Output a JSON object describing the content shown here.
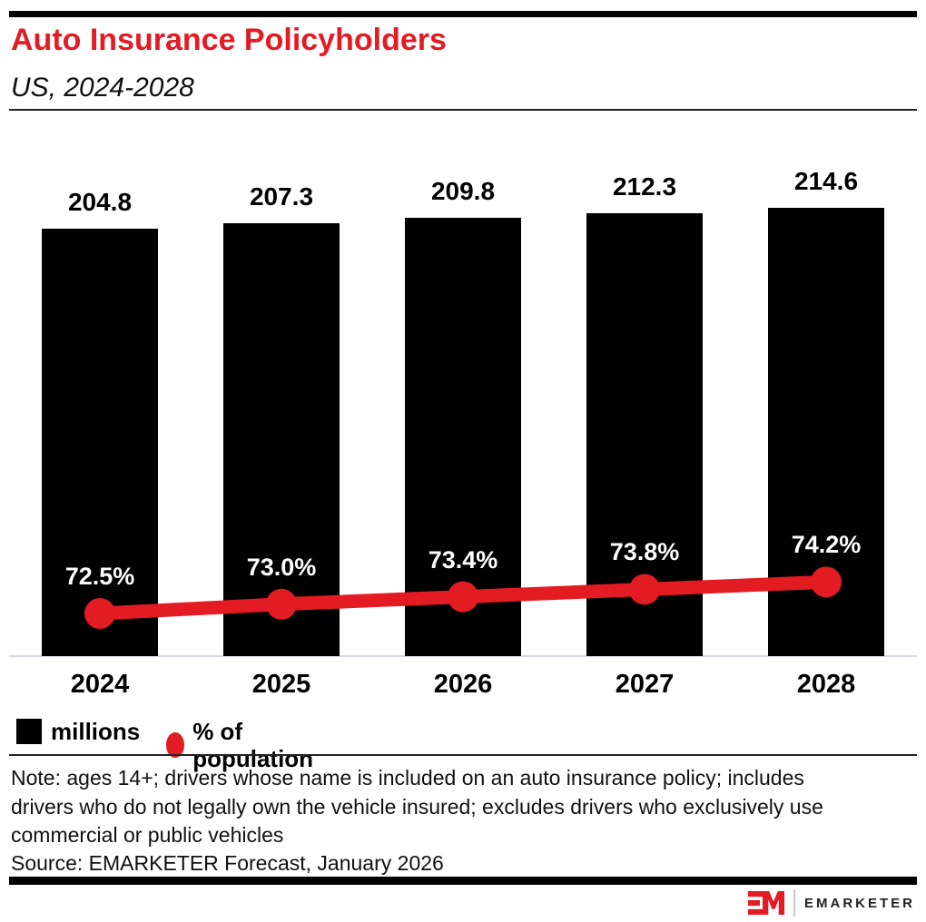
{
  "header": {
    "title": "Auto Insurance Policyholders",
    "subtitle": "US, 2024-2028"
  },
  "chart_data": {
    "type": "bar",
    "title": "Auto Insurance Policyholders",
    "subtitle": "US, 2024-2028",
    "categories": [
      "2024",
      "2025",
      "2026",
      "2027",
      "2028"
    ],
    "series": [
      {
        "name": "millions",
        "render": "bar",
        "color": "#000000",
        "values": [
          204.8,
          207.3,
          209.8,
          212.3,
          214.6
        ],
        "labels": [
          "204.8",
          "207.3",
          "209.8",
          "212.3",
          "214.6"
        ]
      },
      {
        "name": "% of population",
        "render": "line",
        "color": "#e31b23",
        "values": [
          72.5,
          73.0,
          73.4,
          73.8,
          74.2
        ],
        "labels": [
          "72.5%",
          "73.0%",
          "73.4%",
          "73.8%",
          "74.2%"
        ]
      }
    ],
    "xlabel": "",
    "ylabel": "",
    "bar_axis_starts_at_zero": true,
    "grid": false,
    "legend_position": "bottom-left"
  },
  "legend": {
    "items": [
      {
        "label": "millions",
        "swatch": "square",
        "color": "#000000"
      },
      {
        "label": "% of population",
        "swatch": "circle",
        "color": "#e31b23"
      }
    ]
  },
  "footnote": {
    "note_lines": [
      "Note: ages 14+; drivers whose name is included on an auto insurance policy; includes",
      "drivers who do not legally own the vehicle insured; excludes drivers who exclusively use",
      "commercial or public vehicles"
    ],
    "source": "Source: EMARKETER Forecast, January 2026"
  },
  "branding": {
    "logo_text": "EMARKETER"
  },
  "colors": {
    "accent_red": "#e31b23",
    "bar_black": "#000000",
    "axis_line": "#d7d7e8"
  }
}
